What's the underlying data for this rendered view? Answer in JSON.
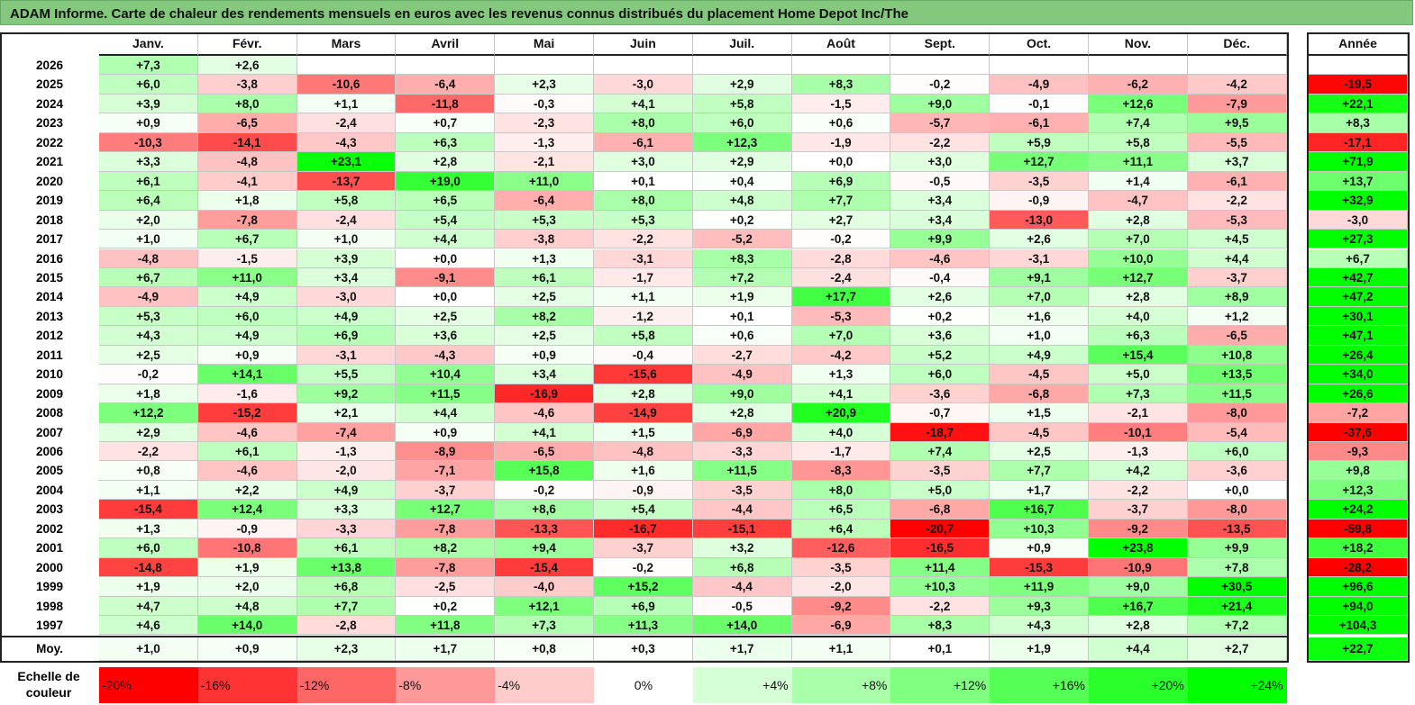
{
  "title": "ADAM Informe. Carte de chaleur des rendements mensuels en euros avec les revenus connus distribués du placement Home Depot Inc/The",
  "months": [
    "Janv.",
    "Févr.",
    "Mars",
    "Avril",
    "Mai",
    "Juin",
    "Juil.",
    "Août",
    "Sept.",
    "Oct.",
    "Nov.",
    "Déc."
  ],
  "year_header": "Année",
  "avg_label": "Moy.",
  "scale_label": "Echelle de couleur",
  "scale": [
    "-20%",
    "-16%",
    "-12%",
    "-8%",
    "-4%",
    "0%",
    "+4%",
    "+8%",
    "+12%",
    "+16%",
    "+20%",
    "+24%"
  ],
  "colors": {
    "title_bg": "#84c87d",
    "negative": "#ff0000",
    "neutral": "#ffffff",
    "positive": "#00ff00"
  },
  "chart_data": {
    "type": "heatmap",
    "title": "ADAM Informe. Carte de chaleur des rendements mensuels en euros avec les revenus connus distribués du placement Home Depot Inc/The",
    "x_categories": [
      "Janv.",
      "Févr.",
      "Mars",
      "Avril",
      "Mai",
      "Juin",
      "Juil.",
      "Août",
      "Sept.",
      "Oct.",
      "Nov.",
      "Déc."
    ],
    "color_range": [
      -20,
      24
    ],
    "unit": "%",
    "rows": [
      {
        "year": "2026",
        "values": [
          "+7,3",
          "+2,6",
          "",
          "",
          "",
          "",
          "",
          "",
          "",
          "",
          "",
          ""
        ],
        "annual": ""
      },
      {
        "year": "2025",
        "values": [
          "+6,0",
          "-3,8",
          "-10,6",
          "-6,4",
          "+2,3",
          "-3,0",
          "+2,9",
          "+8,3",
          "-0,2",
          "-4,9",
          "-6,2",
          "-4,2"
        ],
        "annual": "-19,5"
      },
      {
        "year": "2024",
        "values": [
          "+3,9",
          "+8,0",
          "+1,1",
          "-11,8",
          "-0,3",
          "+4,1",
          "+5,8",
          "-1,5",
          "+9,0",
          "-0,1",
          "+12,6",
          "-7,9"
        ],
        "annual": "+22,1"
      },
      {
        "year": "2023",
        "values": [
          "+0,9",
          "-6,5",
          "-2,4",
          "+0,7",
          "-2,3",
          "+8,0",
          "+6,0",
          "+0,6",
          "-5,7",
          "-6,1",
          "+7,4",
          "+9,5"
        ],
        "annual": "+8,3"
      },
      {
        "year": "2022",
        "values": [
          "-10,3",
          "-14,1",
          "-4,3",
          "+6,3",
          "-1,3",
          "-6,1",
          "+12,3",
          "-1,9",
          "-2,2",
          "+5,9",
          "+5,8",
          "-5,5"
        ],
        "annual": "-17,1"
      },
      {
        "year": "2021",
        "values": [
          "+3,3",
          "-4,8",
          "+23,1",
          "+2,8",
          "-2,1",
          "+3,0",
          "+2,9",
          "+0,0",
          "+3,0",
          "+12,7",
          "+11,1",
          "+3,7"
        ],
        "annual": "+71,9"
      },
      {
        "year": "2020",
        "values": [
          "+6,1",
          "-4,1",
          "-13,7",
          "+19,0",
          "+11,0",
          "+0,1",
          "+0,4",
          "+6,9",
          "-0,5",
          "-3,5",
          "+1,4",
          "-6,1"
        ],
        "annual": "+13,7"
      },
      {
        "year": "2019",
        "values": [
          "+6,4",
          "+1,8",
          "+5,8",
          "+6,5",
          "-6,4",
          "+8,0",
          "+4,8",
          "+7,7",
          "+3,4",
          "-0,9",
          "-4,7",
          "-2,2"
        ],
        "annual": "+32,9"
      },
      {
        "year": "2018",
        "values": [
          "+2,0",
          "-7,8",
          "-2,4",
          "+5,4",
          "+5,3",
          "+5,3",
          "+0,2",
          "+2,7",
          "+3,4",
          "-13,0",
          "+2,8",
          "-5,3"
        ],
        "annual": "-3,0"
      },
      {
        "year": "2017",
        "values": [
          "+1,0",
          "+6,7",
          "+1,0",
          "+4,4",
          "-3,8",
          "-2,2",
          "-5,2",
          "-0,2",
          "+9,9",
          "+2,6",
          "+7,0",
          "+4,5"
        ],
        "annual": "+27,3"
      },
      {
        "year": "2016",
        "values": [
          "-4,8",
          "-1,5",
          "+3,9",
          "+0,0",
          "+1,3",
          "-3,1",
          "+8,3",
          "-2,8",
          "-4,6",
          "-3,1",
          "+10,0",
          "+4,4"
        ],
        "annual": "+6,7"
      },
      {
        "year": "2015",
        "values": [
          "+6,7",
          "+11,0",
          "+3,4",
          "-9,1",
          "+6,1",
          "-1,7",
          "+7,2",
          "-2,4",
          "-0,4",
          "+9,1",
          "+12,7",
          "-3,7"
        ],
        "annual": "+42,7"
      },
      {
        "year": "2014",
        "values": [
          "-4,9",
          "+4,9",
          "-3,0",
          "+0,0",
          "+2,5",
          "+1,1",
          "+1,9",
          "+17,7",
          "+2,6",
          "+7,0",
          "+2,8",
          "+8,9"
        ],
        "annual": "+47,2"
      },
      {
        "year": "2013",
        "values": [
          "+5,3",
          "+6,0",
          "+4,9",
          "+2,5",
          "+8,2",
          "-1,2",
          "+0,1",
          "-5,3",
          "+0,2",
          "+1,6",
          "+4,0",
          "+1,2"
        ],
        "annual": "+30,1"
      },
      {
        "year": "2012",
        "values": [
          "+4,3",
          "+4,9",
          "+6,9",
          "+3,6",
          "+2,5",
          "+5,8",
          "+0,6",
          "+7,0",
          "+3,6",
          "+1,0",
          "+6,3",
          "-6,5"
        ],
        "annual": "+47,1"
      },
      {
        "year": "2011",
        "values": [
          "+2,5",
          "+0,9",
          "-3,1",
          "-4,3",
          "+0,9",
          "-0,4",
          "-2,7",
          "-4,2",
          "+5,2",
          "+4,9",
          "+15,4",
          "+10,8"
        ],
        "annual": "+26,4"
      },
      {
        "year": "2010",
        "values": [
          "-0,2",
          "+14,1",
          "+5,5",
          "+10,4",
          "+3,4",
          "-15,6",
          "-4,9",
          "+1,3",
          "+6,0",
          "-4,5",
          "+5,0",
          "+13,5"
        ],
        "annual": "+34,0"
      },
      {
        "year": "2009",
        "values": [
          "+1,8",
          "-1,6",
          "+9,2",
          "+11,5",
          "-16,9",
          "+2,8",
          "+9,0",
          "+4,1",
          "-3,6",
          "-6,8",
          "+7,3",
          "+11,5"
        ],
        "annual": "+26,6"
      },
      {
        "year": "2008",
        "values": [
          "+12,2",
          "-15,2",
          "+2,1",
          "+4,4",
          "-4,6",
          "-14,9",
          "+2,8",
          "+20,9",
          "-0,7",
          "+1,5",
          "-2,1",
          "-8,0"
        ],
        "annual": "-7,2"
      },
      {
        "year": "2007",
        "values": [
          "+2,9",
          "-4,6",
          "-7,4",
          "+0,9",
          "+4,1",
          "+1,5",
          "-6,9",
          "+4,0",
          "-18,7",
          "-4,5",
          "-10,1",
          "-5,4"
        ],
        "annual": "-37,6"
      },
      {
        "year": "2006",
        "values": [
          "-2,2",
          "+6,1",
          "-1,3",
          "-8,9",
          "-6,5",
          "-4,8",
          "-3,3",
          "-1,7",
          "+7,4",
          "+2,5",
          "-1,3",
          "+6,0"
        ],
        "annual": "-9,3"
      },
      {
        "year": "2005",
        "values": [
          "+0,8",
          "-4,6",
          "-2,0",
          "-7,1",
          "+15,8",
          "+1,6",
          "+11,5",
          "-8,3",
          "-3,5",
          "+7,7",
          "+4,2",
          "-3,6"
        ],
        "annual": "+9,8"
      },
      {
        "year": "2004",
        "values": [
          "+1,1",
          "+2,2",
          "+4,9",
          "-3,7",
          "-0,2",
          "-0,9",
          "-3,5",
          "+8,0",
          "+5,0",
          "+1,7",
          "-2,2",
          "+0,0"
        ],
        "annual": "+12,3"
      },
      {
        "year": "2003",
        "values": [
          "-15,4",
          "+12,4",
          "+3,3",
          "+12,7",
          "+8,6",
          "+5,4",
          "-4,4",
          "+6,5",
          "-6,8",
          "+16,7",
          "-3,7",
          "-8,0"
        ],
        "annual": "+24,2"
      },
      {
        "year": "2002",
        "values": [
          "+1,3",
          "-0,9",
          "-3,3",
          "-7,8",
          "-13,3",
          "-16,7",
          "-15,1",
          "+6,4",
          "-20,7",
          "+10,3",
          "-9,2",
          "-13,5"
        ],
        "annual": "-59,8"
      },
      {
        "year": "2001",
        "values": [
          "+6,0",
          "-10,8",
          "+6,1",
          "+8,2",
          "+9,4",
          "-3,7",
          "+3,2",
          "-12,6",
          "-16,5",
          "+0,9",
          "+23,8",
          "+9,9"
        ],
        "annual": "+18,2"
      },
      {
        "year": "2000",
        "values": [
          "-14,8",
          "+1,9",
          "+13,8",
          "-7,8",
          "-15,4",
          "-0,2",
          "+6,8",
          "-3,5",
          "+11,4",
          "-15,3",
          "-10,9",
          "+7,8"
        ],
        "annual": "-28,2"
      },
      {
        "year": "1999",
        "values": [
          "+1,9",
          "+2,0",
          "+6,8",
          "-2,5",
          "-4,0",
          "+15,2",
          "-4,4",
          "-2,0",
          "+10,3",
          "+11,9",
          "+9,0",
          "+30,5"
        ],
        "annual": "+96,6"
      },
      {
        "year": "1998",
        "values": [
          "+4,7",
          "+4,8",
          "+7,7",
          "+0,2",
          "+12,1",
          "+6,9",
          "-0,5",
          "-9,2",
          "-2,2",
          "+9,3",
          "+16,7",
          "+21,4"
        ],
        "annual": "+94,0"
      },
      {
        "year": "1997",
        "values": [
          "+4,6",
          "+14,0",
          "-2,8",
          "+11,8",
          "+7,3",
          "+11,3",
          "+14,0",
          "-6,9",
          "+8,3",
          "+4,3",
          "+2,8",
          "+7,2"
        ],
        "annual": "+104,3"
      }
    ],
    "average": {
      "values": [
        "+1,0",
        "+0,9",
        "+2,3",
        "+1,7",
        "+0,8",
        "+0,3",
        "+1,7",
        "+1,1",
        "+0,1",
        "+1,9",
        "+4,4",
        "+2,7"
      ],
      "annual": "+22,7"
    }
  }
}
